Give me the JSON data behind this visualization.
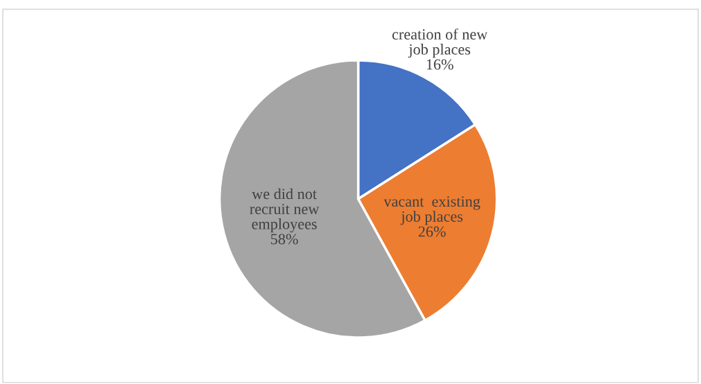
{
  "chart_data": {
    "type": "pie",
    "categories": [
      "creation of new\njob places",
      "vacant  existing\njob places",
      "we did not\nrecruit new\nemployees"
    ],
    "values": [
      16,
      26,
      58
    ],
    "value_labels": [
      "16%",
      "26%",
      "58%"
    ],
    "colors": [
      "#4472c4",
      "#ed7d31",
      "#a5a5a5"
    ]
  }
}
